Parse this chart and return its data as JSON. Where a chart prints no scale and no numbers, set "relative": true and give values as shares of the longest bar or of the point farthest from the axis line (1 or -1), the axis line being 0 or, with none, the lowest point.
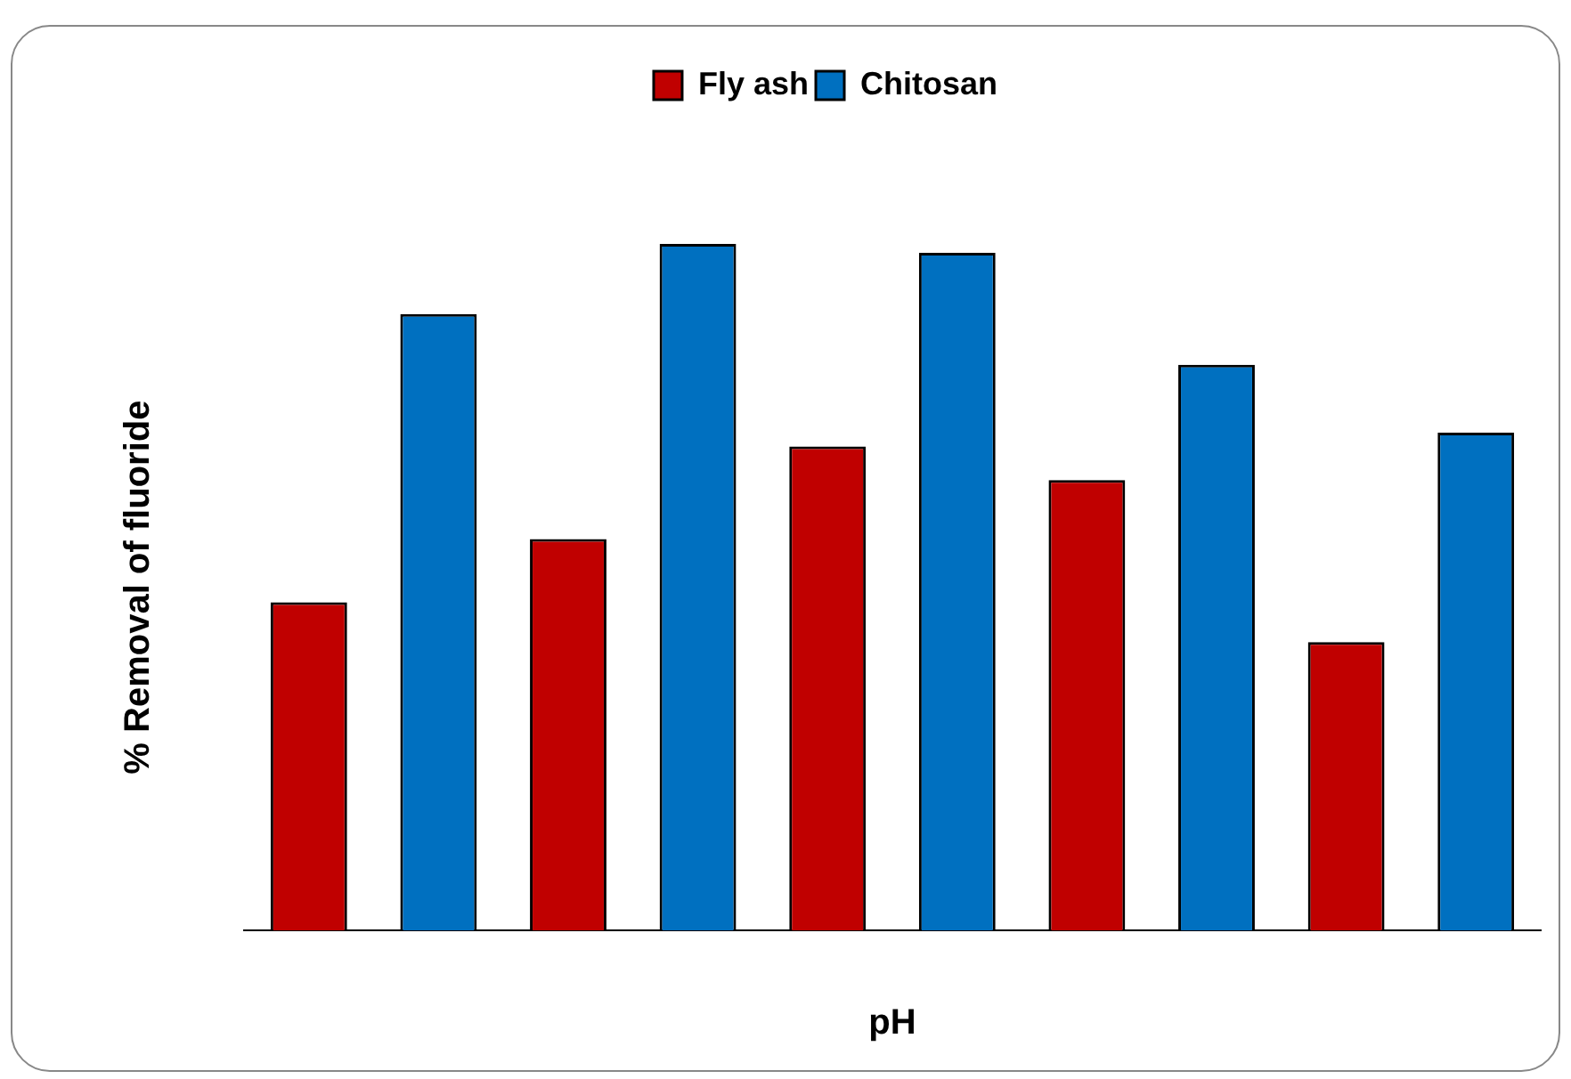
{
  "chart_data": {
    "type": "bar",
    "relative": true,
    "xlabel": "pH",
    "ylabel": "% Removal of fluoride",
    "legend": "top",
    "grid": false,
    "categories": [
      null,
      null,
      null,
      null,
      null
    ],
    "series": [
      {
        "name": "Fly ash",
        "color": "#c00000",
        "values": [
          0.478,
          0.57,
          0.705,
          0.656,
          0.42
        ]
      },
      {
        "name": "Chitosan",
        "color": "#0070c0",
        "values": [
          0.898,
          1,
          0.987,
          0.824,
          0.725
        ]
      }
    ]
  }
}
